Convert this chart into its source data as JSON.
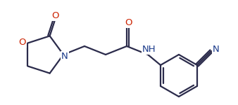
{
  "bg_color": "#ffffff",
  "bond_color": "#2b2b4b",
  "atom_colors": {
    "O": "#cc2200",
    "N": "#1a3a8a",
    "C": "#2b2b4b"
  },
  "figsize": [
    3.38,
    1.5
  ],
  "dpi": 100,
  "lw": 1.6,
  "xlim": [
    0,
    338
  ],
  "ylim": [
    0,
    150
  ]
}
